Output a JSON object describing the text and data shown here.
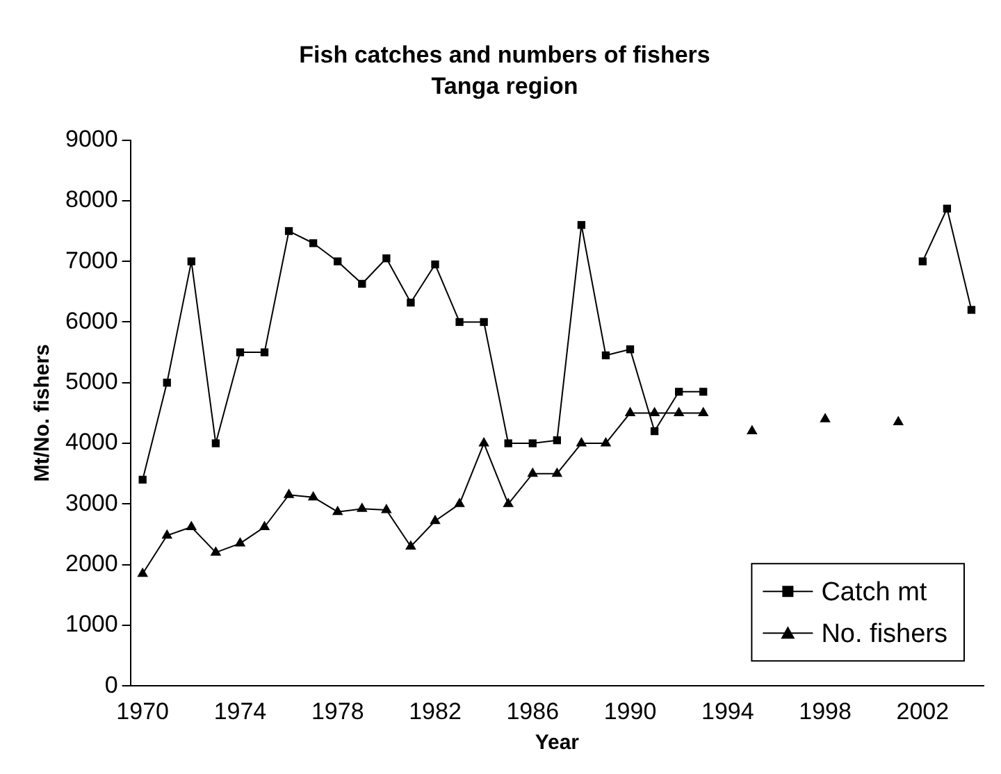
{
  "chart_data": {
    "type": "line",
    "title": "Fish catches and numbers of fishers",
    "subtitle": "Tanga region",
    "xlabel": "Year",
    "ylabel": "Mt/No. fishers",
    "categories": [
      "1970",
      null,
      null,
      null,
      "1974",
      null,
      null,
      null,
      "1978",
      null,
      null,
      null,
      "1982",
      null,
      null,
      null,
      "1986",
      null,
      null,
      null,
      "1990",
      null,
      null,
      null,
      "1994",
      null,
      null,
      null,
      "1998",
      null,
      null,
      null,
      "2002",
      null,
      null
    ],
    "series": [
      {
        "name": "Catch mt",
        "color": "#000000",
        "marker": "square",
        "values": [
          3400,
          5000,
          7000,
          4000,
          5500,
          5500,
          7500,
          7300,
          7000,
          6630,
          7050,
          6320,
          6950,
          6000,
          6000,
          4000,
          4000,
          4050,
          7600,
          5450,
          5550,
          4200,
          4850,
          4850,
          null,
          null,
          null,
          null,
          null,
          null,
          null,
          null,
          7000,
          7870,
          6200
        ]
      },
      {
        "name": "No. fishers",
        "color": "#000000",
        "marker": "triangle",
        "values": [
          1850,
          2480,
          2620,
          2200,
          2350,
          2620,
          3150,
          3110,
          2870,
          2920,
          2900,
          2300,
          2720,
          3000,
          4000,
          3000,
          3500,
          3500,
          4000,
          4000,
          4500,
          4500,
          4500,
          4500,
          null,
          4200,
          null,
          null,
          4400,
          null,
          null,
          4350,
          null,
          null,
          null
        ]
      }
    ],
    "ylim": [
      0,
      9000
    ],
    "yticks": [
      0,
      1000,
      2000,
      3000,
      4000,
      5000,
      6000,
      7000,
      8000,
      9000
    ],
    "grid": false,
    "legend": "bottom right",
    "line_style": "solid"
  }
}
